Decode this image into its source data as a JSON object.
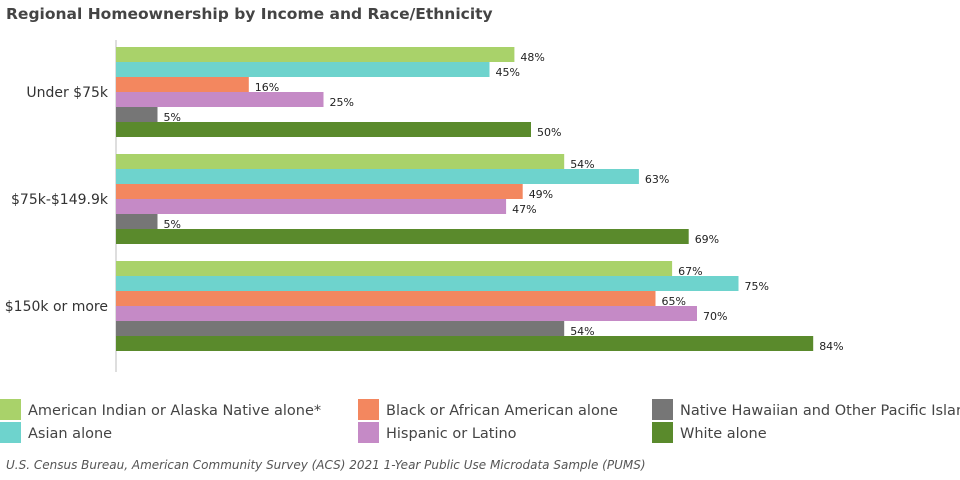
{
  "chart_data": {
    "type": "bar",
    "orientation": "horizontal",
    "title": "Regional Homeownership by Income and Race/Ethnicity",
    "categories": [
      "Under $75k",
      "$75k-$149.9k",
      "$150k or more"
    ],
    "xlim": [
      0,
      100
    ],
    "value_suffix": "%",
    "series": [
      {
        "name": "American Indian or Alaska Native alone*",
        "color": "#a9d26a",
        "values": [
          48,
          54,
          67
        ]
      },
      {
        "name": "Asian alone",
        "color": "#6ed3cd",
        "values": [
          45,
          63,
          75
        ]
      },
      {
        "name": "Black or African American alone",
        "color": "#f3875f",
        "values": [
          16,
          49,
          65
        ]
      },
      {
        "name": "Hispanic or Latino",
        "color": "#c58ac6",
        "values": [
          25,
          47,
          70
        ]
      },
      {
        "name": "Native Hawaiian and Other Pacific Islander alone",
        "color": "#767676",
        "values": [
          5,
          5,
          54
        ]
      },
      {
        "name": "White alone",
        "color": "#5a8a2c",
        "values": [
          50,
          69,
          84
        ]
      }
    ],
    "grid": false,
    "legend_position": "bottom",
    "source": "U.S. Census Bureau, American Community Survey (ACS) 2021 1-Year Public Use Microdata Sample (PUMS)"
  }
}
